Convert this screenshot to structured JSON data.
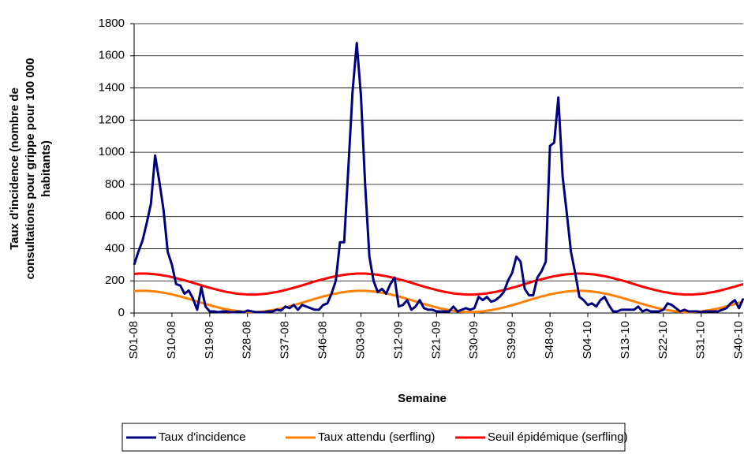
{
  "chart_data": {
    "type": "line",
    "xlabel": "Semaine",
    "ylabel": [
      "Taux d'incidence (nombre de",
      "consultations pour grippe pour 100 000",
      "habitants)"
    ],
    "ylim": [
      0,
      1800
    ],
    "yticks": [
      0,
      200,
      400,
      600,
      800,
      1000,
      1200,
      1400,
      1600,
      1800
    ],
    "grid": true,
    "legend": "bottom",
    "categories": [
      "S01-08",
      null,
      null,
      null,
      null,
      null,
      null,
      null,
      null,
      "S10-08",
      null,
      null,
      null,
      null,
      null,
      null,
      null,
      null,
      "S19-08",
      null,
      null,
      null,
      null,
      null,
      null,
      null,
      null,
      "S28-08",
      null,
      null,
      null,
      null,
      null,
      null,
      null,
      null,
      "S37-08",
      null,
      null,
      null,
      null,
      null,
      null,
      null,
      null,
      "S46-08",
      null,
      null,
      null,
      null,
      null,
      null,
      null,
      null,
      "S03-09",
      null,
      null,
      null,
      null,
      null,
      null,
      null,
      null,
      "S12-09",
      null,
      null,
      null,
      null,
      null,
      null,
      null,
      null,
      "S21-09",
      null,
      null,
      null,
      null,
      null,
      null,
      null,
      null,
      "S30-09",
      null,
      null,
      null,
      null,
      null,
      null,
      null,
      null,
      "S39-09",
      null,
      null,
      null,
      null,
      null,
      null,
      null,
      null,
      "S48-09",
      null,
      null,
      null,
      null,
      null,
      null,
      null,
      null,
      "S04-10",
      null,
      null,
      null,
      null,
      null,
      null,
      null,
      null,
      "S13-10",
      null,
      null,
      null,
      null,
      null,
      null,
      null,
      null,
      "S22-10",
      null,
      null,
      null,
      null,
      null,
      null,
      null,
      null,
      "S31-10",
      null,
      null,
      null,
      null,
      null,
      null,
      null,
      null,
      "S40-10",
      null
    ],
    "series": [
      {
        "name": "Taux d'incidence",
        "color": "#000080",
        "values": [
          300,
          380,
          450,
          560,
          680,
          980,
          820,
          640,
          380,
          300,
          180,
          170,
          120,
          140,
          90,
          20,
          160,
          40,
          10,
          10,
          5,
          10,
          10,
          5,
          5,
          10,
          5,
          15,
          10,
          5,
          5,
          5,
          10,
          10,
          20,
          15,
          40,
          30,
          50,
          20,
          50,
          40,
          30,
          20,
          20,
          50,
          60,
          120,
          200,
          440,
          440,
          900,
          1380,
          1680,
          1350,
          800,
          350,
          200,
          130,
          150,
          120,
          180,
          220,
          40,
          50,
          80,
          20,
          40,
          80,
          30,
          20,
          20,
          10,
          10,
          10,
          10,
          40,
          10,
          20,
          30,
          20,
          30,
          100,
          80,
          100,
          70,
          80,
          100,
          130,
          200,
          250,
          350,
          320,
          150,
          110,
          110,
          220,
          260,
          320,
          1040,
          1060,
          1340,
          850,
          620,
          380,
          250,
          100,
          80,
          50,
          60,
          40,
          80,
          100,
          50,
          10,
          10,
          20,
          20,
          20,
          20,
          40,
          10,
          20,
          10,
          10,
          10,
          20,
          60,
          50,
          30,
          10,
          20,
          10,
          10,
          10,
          5,
          10,
          10,
          10,
          10,
          20,
          30,
          60,
          80,
          30,
          90
        ]
      },
      {
        "name": "Taux attendu (serfling)",
        "color": "#ff8000",
        "values": [
          136,
          138,
          138,
          138,
          136,
          134,
          130,
          126,
          121,
          116,
          109,
          103,
          95,
          88,
          80,
          72,
          64,
          56,
          49,
          41,
          35,
          28,
          23,
          18,
          14,
          10,
          8,
          6,
          6,
          6,
          8,
          10,
          14,
          18,
          23,
          28,
          35,
          41,
          49,
          56,
          64,
          72,
          80,
          88,
          95,
          103,
          109,
          116,
          121,
          126,
          130,
          134,
          136,
          138,
          138,
          138,
          136,
          134,
          130,
          126,
          121,
          116,
          109,
          103,
          95,
          88,
          80,
          72,
          64,
          56,
          49,
          41,
          35,
          28,
          23,
          18,
          14,
          10,
          8,
          6,
          6,
          6,
          8,
          10,
          14,
          18,
          23,
          28,
          35,
          41,
          49,
          56,
          64,
          72,
          80,
          88,
          95,
          103,
          109,
          116,
          121,
          126,
          130,
          134,
          136,
          138,
          138,
          138,
          136,
          134,
          130,
          126,
          121,
          116,
          109,
          103,
          95,
          88,
          80,
          72,
          64,
          56,
          49,
          41,
          35,
          28,
          23,
          18,
          14,
          10,
          8,
          6,
          6,
          6,
          8,
          10,
          14,
          18,
          23,
          28,
          35,
          41,
          49,
          56,
          64,
          72
        ]
      },
      {
        "name": "Seuil épidémique (serfling)",
        "color": "#ff0000",
        "values": [
          243,
          245,
          245,
          245,
          243,
          241,
          238,
          233,
          229,
          223,
          217,
          210,
          203,
          196,
          188,
          180,
          172,
          164,
          157,
          150,
          143,
          137,
          131,
          127,
          122,
          119,
          117,
          115,
          115,
          115,
          117,
          119,
          122,
          127,
          131,
          137,
          143,
          150,
          157,
          164,
          172,
          180,
          188,
          196,
          203,
          210,
          217,
          223,
          229,
          233,
          238,
          241,
          243,
          245,
          245,
          245,
          243,
          241,
          238,
          233,
          229,
          223,
          217,
          210,
          203,
          196,
          188,
          180,
          172,
          164,
          157,
          150,
          143,
          137,
          131,
          127,
          122,
          119,
          117,
          115,
          115,
          115,
          117,
          119,
          122,
          127,
          131,
          137,
          143,
          150,
          157,
          164,
          172,
          180,
          188,
          196,
          203,
          210,
          217,
          223,
          229,
          233,
          238,
          241,
          243,
          245,
          245,
          245,
          243,
          241,
          238,
          233,
          229,
          223,
          217,
          210,
          203,
          196,
          188,
          180,
          172,
          164,
          157,
          150,
          143,
          137,
          131,
          127,
          122,
          119,
          117,
          115,
          115,
          115,
          117,
          119,
          122,
          127,
          131,
          137,
          143,
          150,
          157,
          164,
          172,
          180
        ]
      }
    ]
  }
}
